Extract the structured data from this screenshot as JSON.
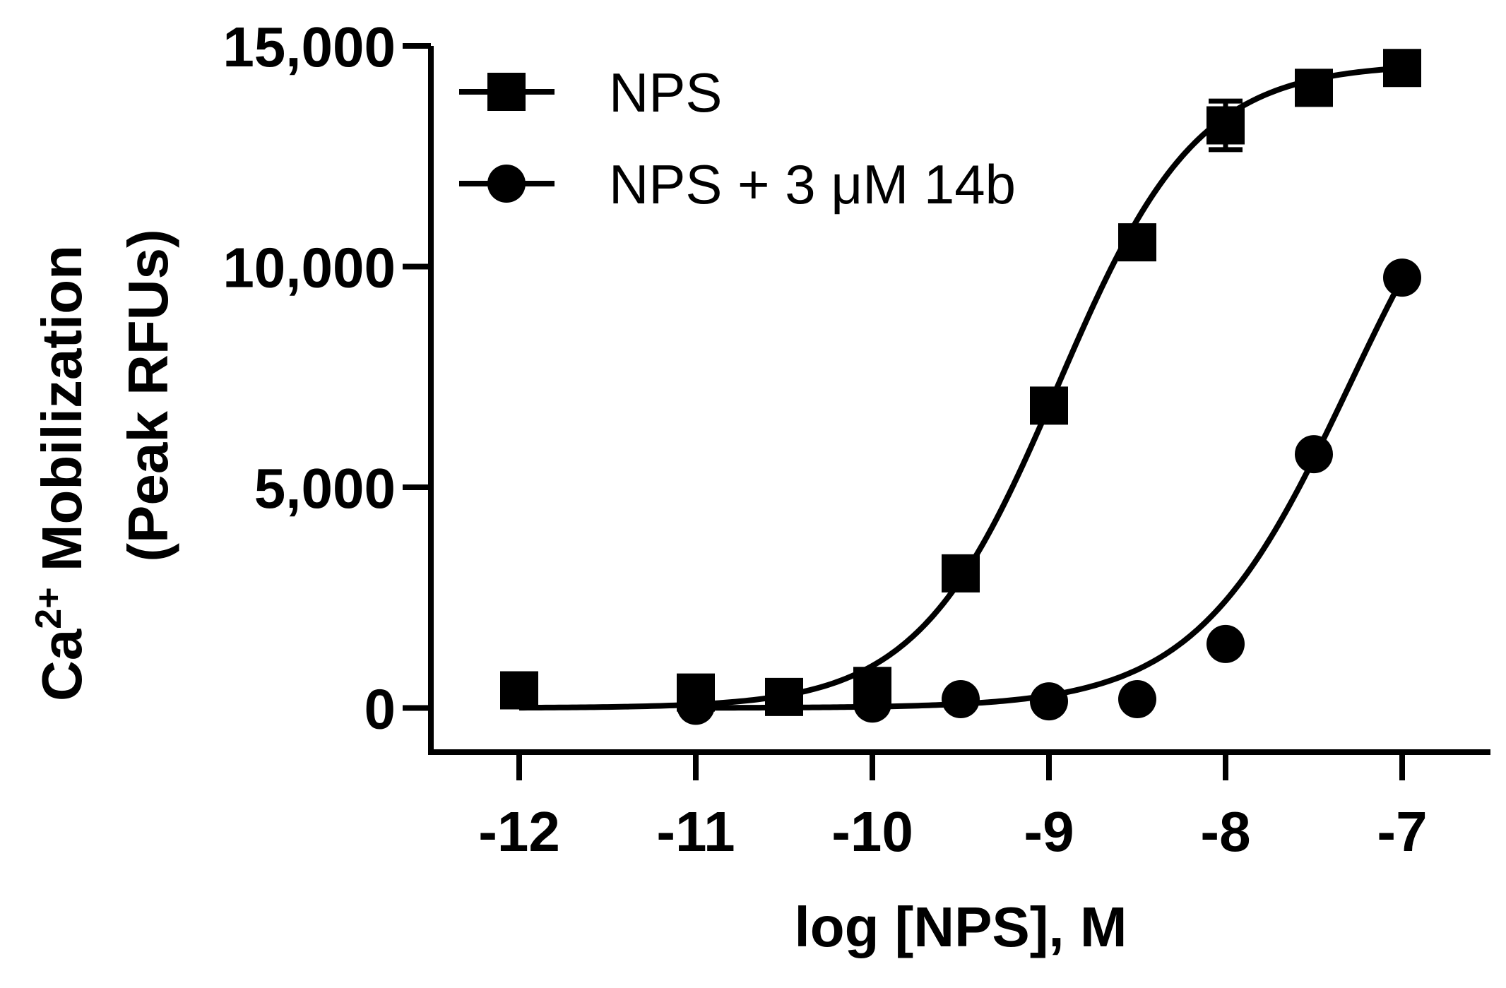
{
  "chart_data": {
    "type": "scatter",
    "xlabel": "log [NPS], M",
    "ylabel_line1_main": "Ca",
    "ylabel_line1_sup": "2+",
    "ylabel_line1_rest": " Mobilization",
    "ylabel_line2": "(Peak RFUs)",
    "xlim": [
      -12.5,
      -6.5
    ],
    "ylim": [
      -1000,
      15000
    ],
    "xticks": [
      -12,
      -11,
      -10,
      -9,
      -8,
      -7
    ],
    "xtick_labels": [
      "-12",
      "-11",
      "-10",
      "-9",
      "-8",
      "-7"
    ],
    "yticks": [
      0,
      5000,
      10000,
      15000
    ],
    "ytick_labels": [
      "0",
      "5,000",
      "10,000",
      "15,000"
    ],
    "legend_position": "top-left",
    "series": [
      {
        "name": "NPS",
        "marker": "square",
        "color": "#000000",
        "x": [
          -12,
          -11,
          -10.5,
          -10,
          -9.5,
          -9,
          -8.5,
          -8,
          -7.5,
          -7
        ],
        "y": [
          400,
          350,
          250,
          500,
          3050,
          6850,
          10550,
          13200,
          14050,
          14500
        ],
        "error": [
          0,
          0,
          0,
          0,
          0,
          0,
          0,
          550,
          0,
          0
        ],
        "fit": {
          "bottom": 0,
          "top": 14600,
          "logEC50": -8.95,
          "hill": 1.1
        }
      },
      {
        "name": "NPS + 3 μM 14b",
        "marker": "circle",
        "color": "#000000",
        "x": [
          -11,
          -10,
          -9.5,
          -9,
          -8.5,
          -8,
          -7.5,
          -7
        ],
        "y": [
          50,
          100,
          200,
          150,
          200,
          1450,
          5750,
          9750
        ],
        "error": [
          0,
          0,
          0,
          0,
          0,
          0,
          0,
          0
        ],
        "fit": {
          "bottom": 0,
          "top": 14600,
          "logEC50": -7.3,
          "hill": 1.0
        }
      }
    ]
  }
}
